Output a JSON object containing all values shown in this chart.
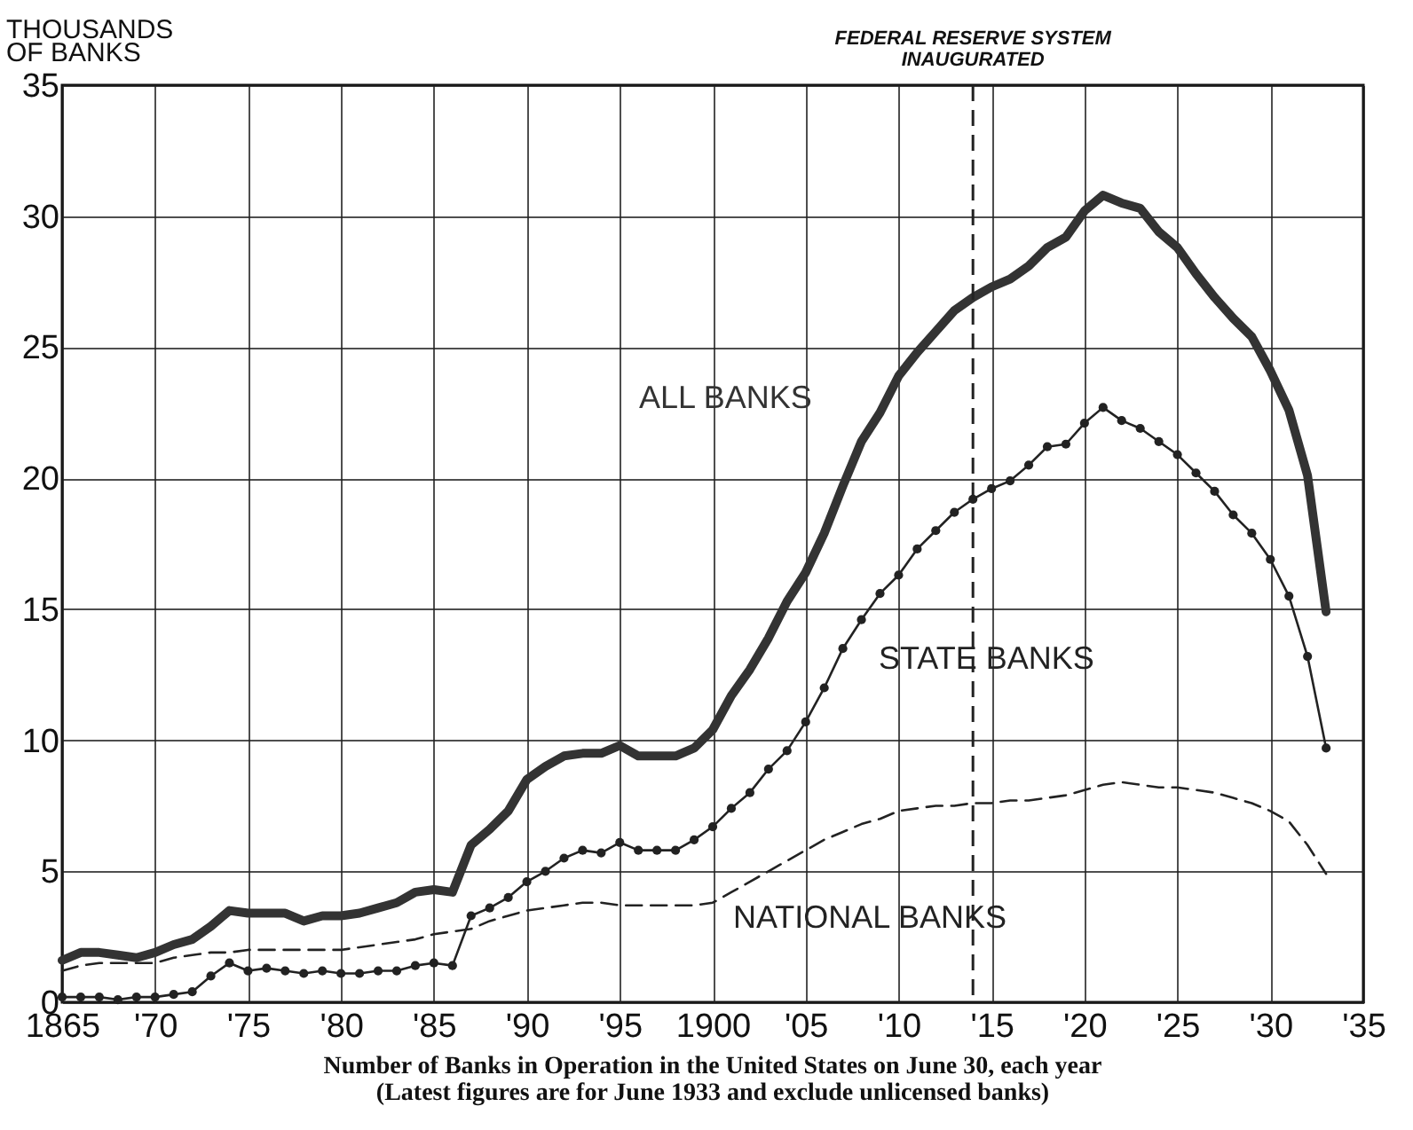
{
  "chart_data": {
    "type": "line",
    "title": "Number of Banks in Operation in the United States on June 30, each year",
    "subtitle": "(Latest figures are for June 1933 and exclude unlicensed banks)",
    "ylabel": "THOUSANDS OF BANKS",
    "x": [
      1865,
      1866,
      1867,
      1868,
      1869,
      1870,
      1871,
      1872,
      1873,
      1874,
      1875,
      1876,
      1877,
      1878,
      1879,
      1880,
      1881,
      1882,
      1883,
      1884,
      1885,
      1886,
      1887,
      1888,
      1889,
      1890,
      1891,
      1892,
      1893,
      1894,
      1895,
      1896,
      1897,
      1898,
      1899,
      1900,
      1901,
      1902,
      1903,
      1904,
      1905,
      1906,
      1907,
      1908,
      1909,
      1910,
      1911,
      1912,
      1913,
      1914,
      1915,
      1916,
      1917,
      1918,
      1919,
      1920,
      1921,
      1922,
      1923,
      1924,
      1925,
      1926,
      1927,
      1928,
      1929,
      1930,
      1931,
      1932,
      1933
    ],
    "series": [
      {
        "name": "ALL BANKS",
        "color": "#333333",
        "line_style": "solid",
        "marker": "none",
        "values": [
          1.6,
          1.9,
          1.9,
          1.8,
          1.7,
          1.9,
          2.2,
          2.4,
          2.9,
          3.5,
          3.4,
          3.4,
          3.4,
          3.1,
          3.3,
          3.3,
          3.4,
          3.6,
          3.8,
          4.2,
          4.3,
          4.2,
          6.0,
          6.6,
          7.3,
          8.5,
          9.0,
          9.4,
          9.5,
          9.5,
          9.8,
          9.4,
          9.4,
          9.4,
          9.7,
          10.4,
          11.7,
          12.7,
          13.9,
          15.3,
          16.4,
          17.9,
          19.7,
          21.4,
          22.5,
          23.9,
          24.8,
          25.6,
          26.4,
          26.9,
          27.3,
          27.6,
          28.1,
          28.8,
          29.2,
          30.2,
          30.8,
          30.5,
          30.3,
          29.4,
          28.8,
          27.8,
          26.9,
          26.1,
          25.4,
          24.1,
          22.6,
          20.1,
          14.9
        ]
      },
      {
        "name": "STATE BANKS",
        "color": "#222222",
        "line_style": "solid",
        "marker": "circle",
        "values": [
          0.2,
          0.2,
          0.2,
          0.1,
          0.2,
          0.2,
          0.3,
          0.4,
          1.0,
          1.5,
          1.2,
          1.3,
          1.2,
          1.1,
          1.2,
          1.1,
          1.1,
          1.2,
          1.2,
          1.4,
          1.5,
          1.4,
          3.3,
          3.6,
          4.0,
          4.6,
          5.0,
          5.5,
          5.8,
          5.7,
          6.1,
          5.8,
          5.8,
          5.8,
          6.2,
          6.7,
          7.4,
          8.0,
          8.9,
          9.6,
          10.7,
          12.0,
          13.5,
          14.6,
          15.6,
          16.3,
          17.3,
          18.0,
          18.7,
          19.2,
          19.6,
          19.9,
          20.5,
          21.2,
          21.3,
          22.1,
          22.7,
          22.2,
          21.9,
          21.4,
          20.9,
          20.2,
          19.5,
          18.6,
          17.9,
          16.9,
          15.5,
          13.2,
          9.7
        ]
      },
      {
        "name": "NATIONAL BANKS",
        "color": "#222222",
        "line_style": "dashed",
        "marker": "none",
        "values": [
          1.2,
          1.4,
          1.5,
          1.5,
          1.5,
          1.5,
          1.7,
          1.8,
          1.9,
          1.9,
          2.0,
          2.0,
          2.0,
          2.0,
          2.0,
          2.0,
          2.1,
          2.2,
          2.3,
          2.4,
          2.6,
          2.7,
          2.8,
          3.1,
          3.3,
          3.5,
          3.6,
          3.7,
          3.8,
          3.8,
          3.7,
          3.7,
          3.7,
          3.7,
          3.7,
          3.8,
          4.2,
          4.6,
          5.0,
          5.4,
          5.8,
          6.2,
          6.5,
          6.8,
          7.0,
          7.3,
          7.4,
          7.5,
          7.5,
          7.6,
          7.6,
          7.7,
          7.7,
          7.8,
          7.9,
          8.1,
          8.3,
          8.4,
          8.3,
          8.2,
          8.2,
          8.1,
          8.0,
          7.8,
          7.6,
          7.3,
          6.9,
          6.0,
          4.9
        ]
      }
    ],
    "xlim": [
      1865,
      1935
    ],
    "xticks": [
      1865,
      {
        "value": 1870,
        "label": "'70"
      },
      {
        "value": 1875,
        "label": "'75"
      },
      {
        "value": 1880,
        "label": "'80"
      },
      {
        "value": 1885,
        "label": "'85"
      },
      {
        "value": 1890,
        "label": "'90"
      },
      {
        "value": 1895,
        "label": "'95"
      },
      1900,
      {
        "value": 1905,
        "label": "'05"
      },
      {
        "value": 1910,
        "label": "'10"
      },
      {
        "value": 1915,
        "label": "'15"
      },
      {
        "value": 1920,
        "label": "'20"
      },
      {
        "value": 1925,
        "label": "'25"
      },
      {
        "value": 1930,
        "label": "'30"
      },
      {
        "value": 1935,
        "label": "'35"
      }
    ],
    "ylim": [
      0,
      35
    ],
    "yticks": [
      0,
      5,
      10,
      15,
      20,
      25,
      30,
      35
    ],
    "ref_lines": [
      {
        "axis": "x",
        "value": 1914,
        "label": "FEDERAL RESERVE SYSTEM INAUGURATED",
        "line_style": "dashed"
      }
    ],
    "grid": true
  }
}
